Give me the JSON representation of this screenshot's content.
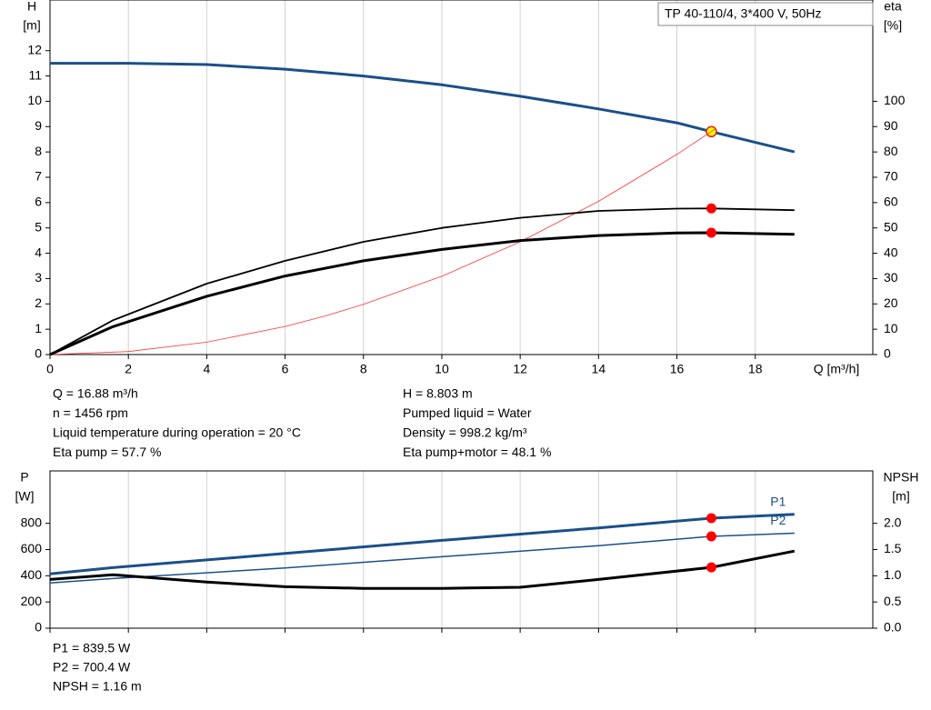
{
  "chart_data": [
    {
      "type": "line",
      "title": "TP 40-110/4, 3*400 V, 50Hz",
      "ylabel": "H",
      "yunit": "[m]",
      "y2label": "eta",
      "y2unit": "[%]",
      "xlabel": "Q [m³/h]",
      "xlim": [
        0,
        21
      ],
      "xticks": [
        0,
        2,
        4,
        6,
        8,
        10,
        12,
        14,
        16,
        18
      ],
      "ylim": [
        0,
        14
      ],
      "yticks": [
        0,
        1,
        2,
        3,
        4,
        5,
        6,
        7,
        8,
        9,
        10,
        11,
        12
      ],
      "y2lim": [
        0,
        140
      ],
      "y2ticks": [
        0,
        10,
        20,
        30,
        40,
        50,
        60,
        70,
        80,
        90,
        100
      ],
      "grid": true,
      "series": [
        {
          "color": "#1b4f8a",
          "width": 3,
          "axis": "y",
          "x": [
            0,
            2,
            4,
            6,
            8,
            10,
            12,
            14,
            16,
            16.88,
            19
          ],
          "values": [
            11.5,
            11.5,
            11.45,
            11.27,
            11.0,
            10.65,
            10.2,
            9.7,
            9.15,
            8.803,
            8.0
          ],
          "marker": {
            "x": 16.88,
            "y": 8.803,
            "color": "#ffff00"
          }
        },
        {
          "color": "#ff3333",
          "width": 0.8,
          "axis": "y",
          "x": [
            0,
            2,
            4,
            6,
            7,
            8,
            10,
            12,
            14,
            16,
            17
          ],
          "values": [
            0,
            0.12,
            0.49,
            1.11,
            1.51,
            1.98,
            3.09,
            4.45,
            6.05,
            7.9,
            8.93
          ]
        },
        {
          "color": "#000000",
          "width": 1.8,
          "axis": "y2",
          "x": [
            0,
            1.6,
            4,
            6,
            8,
            10,
            12,
            14,
            16,
            16.88,
            19
          ],
          "values": [
            0,
            13.5,
            28,
            37,
            44.5,
            50,
            54,
            56.7,
            57.6,
            57.7,
            57
          ],
          "marker": {
            "x": 16.88,
            "y": 57.7,
            "color": "#ff0000"
          }
        },
        {
          "color": "#000000",
          "width": 3,
          "axis": "y2",
          "x": [
            0,
            1.6,
            4,
            6,
            8,
            10,
            12,
            14,
            16,
            16.88,
            19
          ],
          "values": [
            0,
            11,
            23,
            31,
            37,
            41.5,
            45,
            47,
            48,
            48.1,
            47.5
          ],
          "marker": {
            "x": 16.88,
            "y": 48.1,
            "color": "#ff0000"
          }
        }
      ],
      "annotations": [
        "Q = 16.88 m³/h",
        "n = 1456 rpm",
        "Liquid temperature during operation = 20 °C",
        "Eta pump = 57.7 %",
        "H = 8.803 m",
        "Pumped liquid = Water",
        "Density = 998.2 kg/m³",
        "Eta pump+motor = 48.1 %"
      ]
    },
    {
      "type": "line",
      "ylabel": "P",
      "yunit": "[W]",
      "y2label": "NPSH",
      "y2unit": "[m]",
      "xlim": [
        0,
        21
      ],
      "xticks": [
        0,
        2,
        4,
        6,
        8,
        10,
        12,
        14,
        16,
        18
      ],
      "ylim": [
        0,
        1200
      ],
      "yticks": [
        0,
        200,
        400,
        600,
        800
      ],
      "y2lim": [
        0,
        3
      ],
      "y2ticks": [
        {
          "value": 0,
          "label": "0.0"
        },
        0.5,
        {
          "value": 1,
          "label": "1.0"
        },
        1.5,
        {
          "value": 2,
          "label": "2.0"
        }
      ],
      "grid": true,
      "series": [
        {
          "name": "P1",
          "color": "#1b4f8a",
          "width": 3,
          "axis": "y",
          "x": [
            0,
            1.6,
            6,
            10,
            14,
            16.88,
            19
          ],
          "values": [
            415,
            462,
            570,
            670,
            765,
            839.5,
            869
          ],
          "marker": {
            "x": 16.88,
            "y": 839.5,
            "color": "#ff0000"
          }
        },
        {
          "name": "P2",
          "color": "#1b4f8a",
          "width": 1.5,
          "axis": "y",
          "x": [
            0,
            1.6,
            6,
            10,
            14,
            16.88,
            19
          ],
          "values": [
            345,
            379,
            460,
            545,
            630,
            700.4,
            725
          ],
          "marker": {
            "x": 16.88,
            "y": 700.4,
            "color": "#ff0000"
          }
        },
        {
          "color": "#000000",
          "width": 3,
          "axis": "y2",
          "x": [
            0,
            1.6,
            4,
            6,
            8,
            10,
            12,
            14,
            16.88,
            19
          ],
          "values": [
            0.93,
            1.02,
            0.88,
            0.79,
            0.76,
            0.76,
            0.78,
            0.93,
            1.16,
            1.47
          ],
          "marker": {
            "x": 16.88,
            "y": 1.16,
            "color": "#ff0000"
          }
        }
      ],
      "annotations": [
        "P1 = 839.5 W",
        "P2 = 700.4 W",
        "NPSH = 1.16 m"
      ]
    }
  ]
}
